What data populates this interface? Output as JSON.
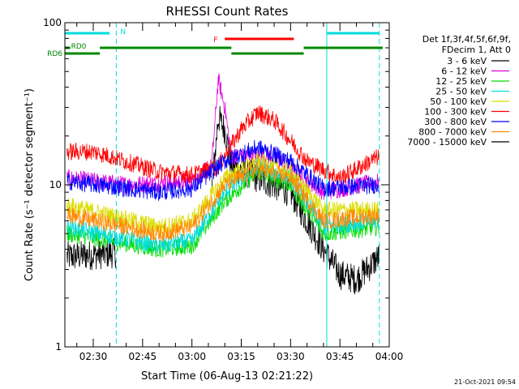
{
  "chart_data": {
    "type": "line",
    "title": "RHESSI Count Rates",
    "xlabel": "Start Time (06-Aug-13 02:21:22)",
    "ylabel": "Count Rate (s⁻¹ detector segment⁻¹)",
    "y_scale": "log",
    "xlim": [
      "02:21:22",
      "04:00:00"
    ],
    "ylim": [
      1,
      100
    ],
    "x_ticks": [
      "02:30",
      "02:45",
      "03:00",
      "03:15",
      "03:30",
      "03:45",
      "04:00"
    ],
    "y_ticks": [
      "1",
      "10",
      "100"
    ],
    "legend_position": "right",
    "legend_header": [
      "Det 1f,3f,4f,5f,6f,9f,",
      "FDecim 1, Att 0"
    ],
    "series": [
      {
        "name": "3 - 6 keV",
        "color": "#000000",
        "points": [
          [
            "02:22",
            3.6
          ],
          [
            "02:30",
            3.7
          ],
          [
            "02:37",
            3.8
          ],
          [
            "02:38",
            null
          ],
          [
            "03:06",
            9
          ],
          [
            "03:08",
            26
          ],
          [
            "03:10",
            22
          ],
          [
            "03:12",
            13
          ],
          [
            "03:20",
            11
          ],
          [
            "03:30",
            9
          ],
          [
            "03:40",
            4
          ],
          [
            "03:45",
            2.8
          ],
          [
            "03:50",
            2.6
          ],
          [
            "03:57",
            3.6
          ]
        ]
      },
      {
        "name": "6 - 12 keV",
        "color": "#dd00dd",
        "points": [
          [
            "02:22",
            11
          ],
          [
            "02:40",
            10
          ],
          [
            "03:00",
            10.5
          ],
          [
            "03:06",
            13
          ],
          [
            "03:08",
            45
          ],
          [
            "03:10",
            30
          ],
          [
            "03:12",
            15
          ],
          [
            "03:25",
            15
          ],
          [
            "03:40",
            9
          ],
          [
            "03:57",
            10.5
          ]
        ]
      },
      {
        "name": "12 - 25 keV",
        "color": "#00dd00",
        "points": [
          [
            "02:22",
            5
          ],
          [
            "02:50",
            4
          ],
          [
            "03:00",
            4.2
          ],
          [
            "03:10",
            8
          ],
          [
            "03:20",
            12
          ],
          [
            "03:30",
            10
          ],
          [
            "03:40",
            5
          ],
          [
            "03:57",
            5.5
          ]
        ]
      },
      {
        "name": "25 - 50 keV",
        "color": "#00dddd",
        "points": [
          [
            "02:22",
            5.5
          ],
          [
            "02:50",
            4.2
          ],
          [
            "03:00",
            4.5
          ],
          [
            "03:10",
            9
          ],
          [
            "03:20",
            13
          ],
          [
            "03:30",
            11
          ],
          [
            "03:40",
            5.5
          ],
          [
            "03:57",
            6
          ]
        ]
      },
      {
        "name": "50 - 100 keV",
        "color": "#dddd00",
        "points": [
          [
            "02:22",
            7.5
          ],
          [
            "02:50",
            5.5
          ],
          [
            "03:00",
            6
          ],
          [
            "03:10",
            11
          ],
          [
            "03:20",
            14
          ],
          [
            "03:30",
            12
          ],
          [
            "03:40",
            7
          ],
          [
            "03:57",
            7
          ]
        ]
      },
      {
        "name": "100 - 300 keV",
        "color": "#ff0000",
        "points": [
          [
            "02:22",
            16
          ],
          [
            "02:30",
            16
          ],
          [
            "02:35",
            15
          ],
          [
            "02:50",
            12
          ],
          [
            "03:00",
            11.5
          ],
          [
            "03:08",
            13
          ],
          [
            "03:15",
            22
          ],
          [
            "03:20",
            28
          ],
          [
            "03:25",
            25
          ],
          [
            "03:35",
            14
          ],
          [
            "03:45",
            11
          ],
          [
            "03:57",
            15
          ]
        ]
      },
      {
        "name": "300 - 800 keV",
        "color": "#0000ff",
        "points": [
          [
            "02:22",
            10.5
          ],
          [
            "02:50",
            9
          ],
          [
            "03:00",
            9.5
          ],
          [
            "03:10",
            14
          ],
          [
            "03:20",
            17
          ],
          [
            "03:30",
            14
          ],
          [
            "03:40",
            9.5
          ],
          [
            "03:57",
            10
          ]
        ]
      },
      {
        "name": "800 - 7000 keV",
        "color": "#ff8800",
        "points": [
          [
            "02:22",
            6.5
          ],
          [
            "02:50",
            5
          ],
          [
            "03:00",
            5.5
          ],
          [
            "03:10",
            10
          ],
          [
            "03:20",
            12.5
          ],
          [
            "03:30",
            11
          ],
          [
            "03:40",
            6
          ],
          [
            "03:57",
            6.5
          ]
        ]
      },
      {
        "name": "7000 - 15000 keV",
        "color": "#000000",
        "points": []
      }
    ],
    "time_marks": [
      {
        "time": "02:21:22",
        "style": "solid",
        "color": "#00dddd"
      },
      {
        "time": "02:37",
        "style": "dashed",
        "color": "#00dddd"
      },
      {
        "time": "03:41",
        "style": "solid",
        "color": "#00dddd"
      },
      {
        "time": "03:57",
        "style": "dashed",
        "color": "#00dddd"
      }
    ],
    "annotation_bars": [
      {
        "label": "",
        "color": "#00dddd",
        "row": "night",
        "start": "02:21:22",
        "end": "02:35"
      },
      {
        "label": "N",
        "color": "#00dddd",
        "row": "night_label",
        "start": "02:37",
        "end": "02:37"
      },
      {
        "label": "",
        "color": "#00dddd",
        "row": "night",
        "start": "03:41",
        "end": "03:57"
      },
      {
        "label": "F",
        "color": "#ff0000",
        "row": "flare",
        "start": "03:10",
        "end": "03:31"
      },
      {
        "label": "RD0",
        "color": "#008800",
        "row": "rd0",
        "start": "02:22",
        "end": "02:23"
      },
      {
        "label": "",
        "color": "#008800",
        "row": "rd0",
        "start": "02:32",
        "end": "03:12"
      },
      {
        "label": "",
        "color": "#008800",
        "row": "rd0",
        "start": "03:34",
        "end": "03:58"
      },
      {
        "label": "RD6",
        "color": "#008800",
        "row": "rd6",
        "start": "02:21:22",
        "end": "02:32"
      },
      {
        "label": "",
        "color": "#008800",
        "row": "rd6",
        "start": "03:12",
        "end": "03:34"
      }
    ]
  },
  "footer": {
    "timestamp": "21-Oct-2021 09:54"
  },
  "colors": {
    "background": "#ffffff",
    "axes": "#000000",
    "cyan": "#00dddd",
    "green": "#008800",
    "red": "#ff0000"
  }
}
